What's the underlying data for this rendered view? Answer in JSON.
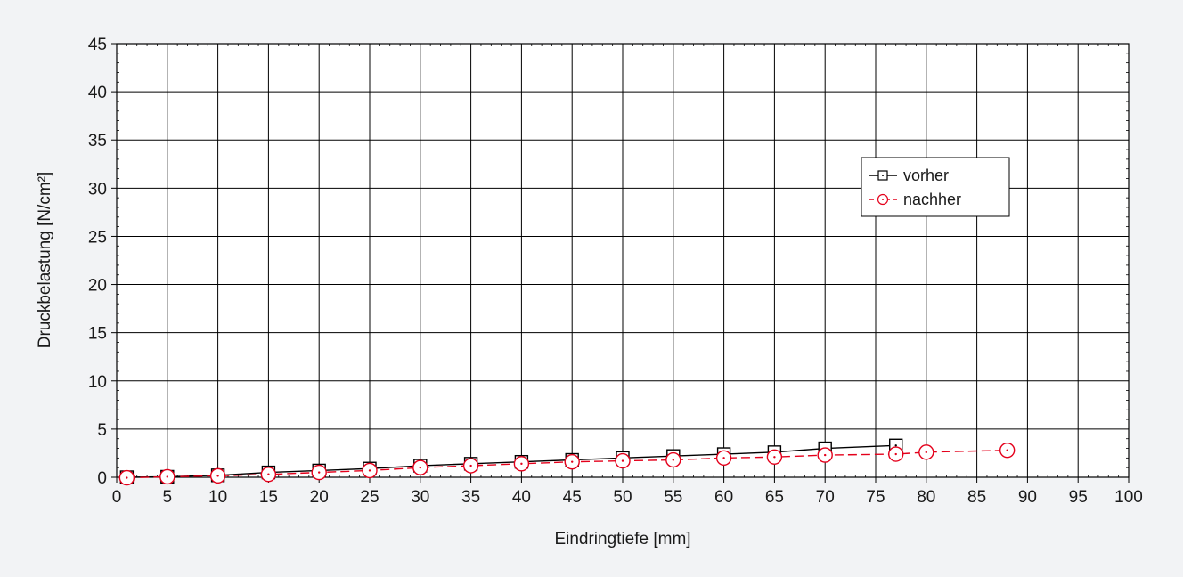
{
  "colors": {
    "background": "#f2f3f5",
    "plot_background": "#ffffff",
    "grid": "#000000",
    "vorher": "#000000",
    "nachher": "#e4001b"
  },
  "chart_data": {
    "type": "line",
    "title": "",
    "xlabel": "Eindringtiefe [mm]",
    "ylabel": "Druckbelastung [N/cm²]",
    "xlim": [
      0,
      100
    ],
    "ylim": [
      0,
      45
    ],
    "x_ticks": [
      0,
      5,
      10,
      15,
      20,
      25,
      30,
      35,
      40,
      45,
      50,
      55,
      60,
      65,
      70,
      75,
      80,
      85,
      90,
      95,
      100
    ],
    "y_ticks": [
      0,
      5,
      10,
      15,
      20,
      25,
      30,
      35,
      40,
      45
    ],
    "grid": true,
    "legend_position": "right, upper-middle",
    "series": [
      {
        "name": "vorher",
        "color": "#000000",
        "line_style": "solid",
        "marker": "square-with-dot",
        "x": [
          1,
          5,
          10,
          15,
          20,
          25,
          30,
          35,
          40,
          45,
          50,
          55,
          60,
          65,
          70,
          77
        ],
        "y": [
          0,
          0.05,
          0.2,
          0.5,
          0.7,
          0.9,
          1.2,
          1.4,
          1.6,
          1.8,
          2.0,
          2.2,
          2.4,
          2.6,
          3.0,
          3.3
        ]
      },
      {
        "name": "nachher",
        "color": "#e4001b",
        "line_style": "dashed",
        "marker": "circle-with-dot",
        "x": [
          1,
          5,
          10,
          15,
          20,
          25,
          30,
          35,
          40,
          45,
          50,
          55,
          60,
          65,
          70,
          77,
          80,
          88
        ],
        "y": [
          -0.05,
          0.05,
          0.15,
          0.3,
          0.5,
          0.7,
          1.0,
          1.2,
          1.4,
          1.6,
          1.7,
          1.8,
          2.0,
          2.1,
          2.3,
          2.4,
          2.6,
          2.8
        ]
      }
    ]
  }
}
